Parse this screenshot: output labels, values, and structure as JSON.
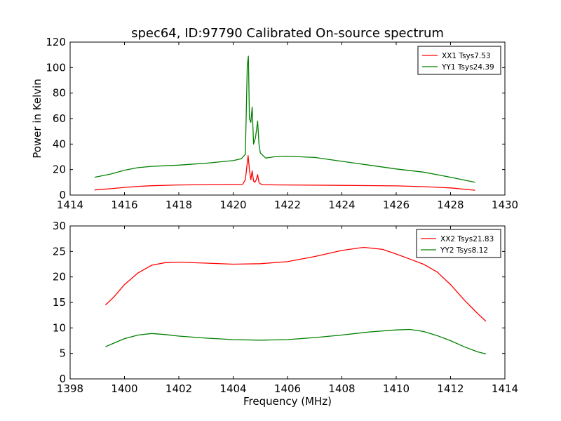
{
  "figure": {
    "title": "spec64, ID:97790 Calibrated On-source spectrum"
  },
  "chart_data": [
    {
      "type": "line",
      "title": "spec64, ID:97790 Calibrated On-source spectrum",
      "xlabel": "",
      "ylabel": "Power in Kelvin",
      "xlim": [
        1414,
        1430
      ],
      "ylim": [
        0,
        120
      ],
      "xticks": [
        1414,
        1416,
        1418,
        1420,
        1422,
        1424,
        1426,
        1428,
        1430
      ],
      "yticks": [
        0,
        20,
        40,
        60,
        80,
        100,
        120
      ],
      "grid": false,
      "legend": "top-right",
      "series": [
        {
          "name": "XX1 Tsys7.53",
          "color": "#ff0000",
          "x": [
            1414.9,
            1415.5,
            1416.0,
            1416.5,
            1417.0,
            1418.0,
            1419.0,
            1420.0,
            1420.35,
            1420.45,
            1420.55,
            1420.6,
            1420.65,
            1420.7,
            1420.75,
            1420.8,
            1420.85,
            1420.9,
            1420.95,
            1421.0,
            1421.1,
            1421.5,
            1422.0,
            1424.0,
            1426.0,
            1427.0,
            1428.0,
            1428.9
          ],
          "y": [
            4.0,
            5.0,
            6.0,
            6.8,
            7.3,
            7.9,
            8.2,
            8.3,
            8.5,
            12.0,
            31.0,
            20.0,
            12.0,
            19.0,
            11.0,
            10.0,
            12.0,
            16.0,
            10.0,
            8.8,
            8.2,
            8.0,
            7.9,
            7.6,
            7.2,
            6.6,
            5.6,
            3.8
          ]
        },
        {
          "name": "YY1 Tsys24.39",
          "color": "#008000",
          "x": [
            1414.9,
            1415.5,
            1416.0,
            1416.5,
            1417.0,
            1418.0,
            1419.0,
            1420.0,
            1420.3,
            1420.45,
            1420.52,
            1420.56,
            1420.6,
            1420.65,
            1420.7,
            1420.75,
            1420.82,
            1420.9,
            1420.95,
            1421.0,
            1421.2,
            1421.5,
            1422.0,
            1423.0,
            1424.0,
            1425.0,
            1426.0,
            1427.0,
            1428.0,
            1428.9
          ],
          "y": [
            14.0,
            16.5,
            19.5,
            21.5,
            22.5,
            23.5,
            25.0,
            27.0,
            28.5,
            32.0,
            101.0,
            109.0,
            60.0,
            57.0,
            69.0,
            40.0,
            45.0,
            58.0,
            40.0,
            33.0,
            29.0,
            30.0,
            30.5,
            29.5,
            26.5,
            23.5,
            20.5,
            18.0,
            14.0,
            10.0
          ]
        }
      ]
    },
    {
      "type": "line",
      "title": "",
      "xlabel": "Frequency (MHz)",
      "ylabel": "",
      "xlim": [
        1398,
        1414
      ],
      "ylim": [
        0,
        30
      ],
      "xticks": [
        1398,
        1400,
        1402,
        1404,
        1406,
        1408,
        1410,
        1412,
        1414
      ],
      "yticks": [
        0,
        5,
        10,
        15,
        20,
        25,
        30
      ],
      "grid": false,
      "legend": "top-right",
      "series": [
        {
          "name": "XX2 Tsys21.83",
          "color": "#ff0000",
          "x": [
            1399.3,
            1399.6,
            1400.0,
            1400.5,
            1401.0,
            1401.5,
            1402.0,
            1403.0,
            1404.0,
            1405.0,
            1406.0,
            1407.0,
            1408.0,
            1408.8,
            1409.5,
            1410.0,
            1410.5,
            1411.0,
            1411.5,
            1412.0,
            1412.5,
            1413.0,
            1413.3
          ],
          "y": [
            14.5,
            16.0,
            18.5,
            20.8,
            22.3,
            22.8,
            22.9,
            22.7,
            22.5,
            22.6,
            23.0,
            24.0,
            25.2,
            25.8,
            25.4,
            24.5,
            23.5,
            22.5,
            21.0,
            18.5,
            15.5,
            12.8,
            11.3
          ]
        },
        {
          "name": "YY2 Tsys8.12",
          "color": "#008000",
          "x": [
            1399.3,
            1399.6,
            1400.0,
            1400.5,
            1401.0,
            1401.5,
            1402.0,
            1403.0,
            1404.0,
            1405.0,
            1406.0,
            1407.0,
            1408.0,
            1409.0,
            1410.0,
            1410.5,
            1411.0,
            1411.5,
            1412.0,
            1412.5,
            1413.0,
            1413.3
          ],
          "y": [
            6.3,
            7.0,
            7.9,
            8.6,
            8.9,
            8.7,
            8.4,
            8.0,
            7.7,
            7.6,
            7.7,
            8.1,
            8.6,
            9.2,
            9.6,
            9.7,
            9.3,
            8.5,
            7.5,
            6.3,
            5.3,
            4.9
          ]
        }
      ]
    }
  ]
}
